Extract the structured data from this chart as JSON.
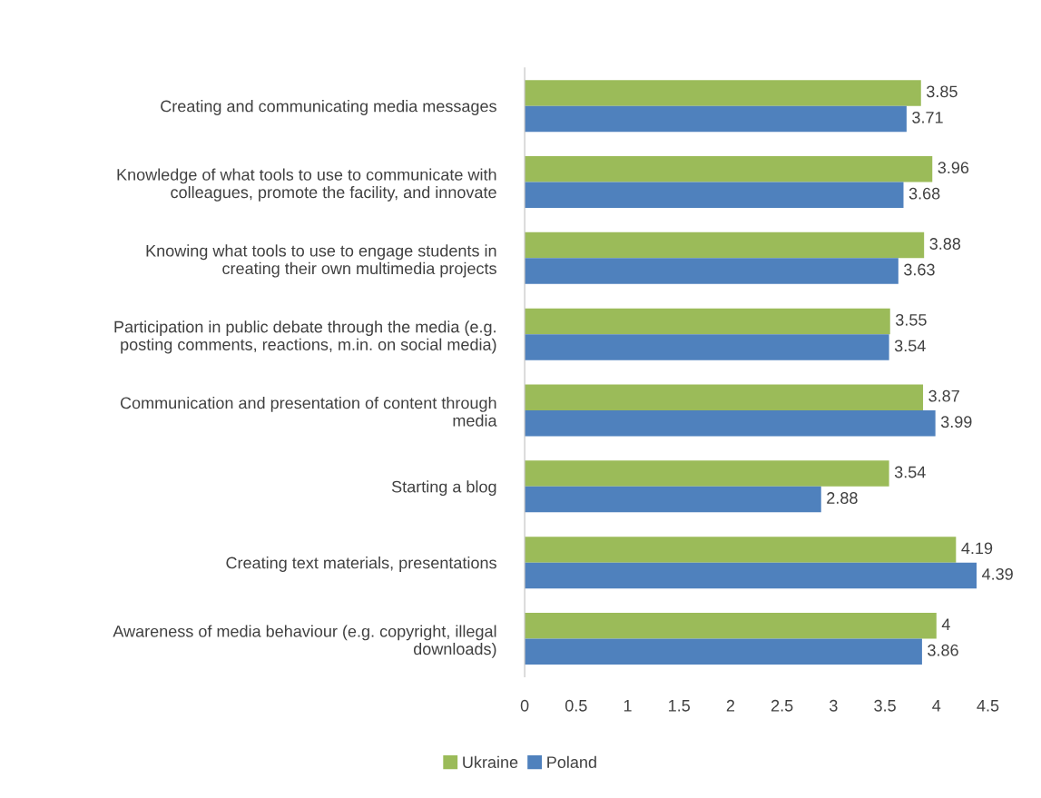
{
  "chart_data": {
    "type": "bar",
    "orientation": "horizontal",
    "categories": [
      "Creating and communicating media messages",
      "Knowledge of what tools to use to communicate with\ncolleagues, promote the facility, and innovate",
      "Knowing what tools to use to engage students in\ncreating their own multimedia projects",
      "Participation in public debate through the media (e.g.\nposting comments, reactions, m.in. on social media)",
      "Communication and presentation of content through\nmedia",
      "Starting a blog",
      "Creating text materials, presentations",
      "Awareness of media behaviour (e.g. copyright, illegal\ndownloads)"
    ],
    "series": [
      {
        "name": "Ukraine",
        "color": "#9bbb59",
        "values": [
          3.85,
          3.96,
          3.88,
          3.55,
          3.87,
          3.54,
          4.19,
          4
        ]
      },
      {
        "name": "Poland",
        "color": "#4f81bd",
        "values": [
          3.71,
          3.68,
          3.63,
          3.54,
          3.99,
          2.88,
          4.39,
          3.86
        ]
      }
    ],
    "xlim": [
      0,
      4.5
    ],
    "xticks": [
      0,
      0.5,
      1,
      1.5,
      2,
      2.5,
      3,
      3.5,
      4,
      4.5
    ],
    "data_labels": true,
    "legend": "bottom",
    "grid": false
  }
}
